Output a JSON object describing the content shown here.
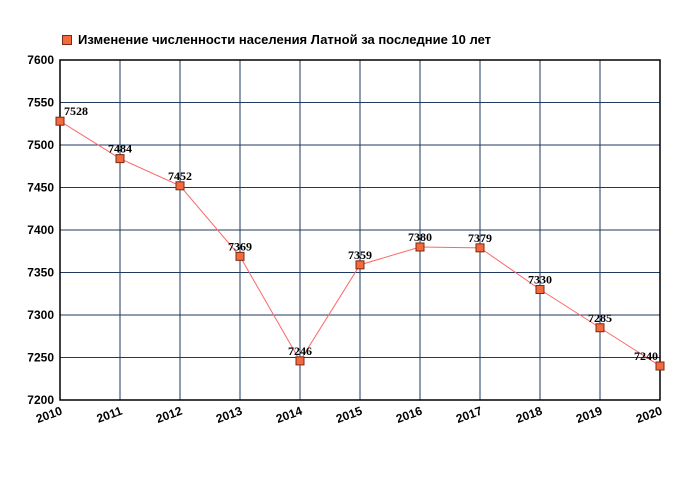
{
  "chart_data": {
    "type": "line",
    "title": "",
    "xlabel": "",
    "ylabel": "",
    "x": [
      "2010",
      "2011",
      "2012",
      "2013",
      "2014",
      "2015",
      "2016",
      "2017",
      "2018",
      "2019",
      "2020"
    ],
    "series": [
      {
        "name": "Изменение численности населения Латной за последние 10 лет",
        "values": [
          7528,
          7484,
          7452,
          7369,
          7246,
          7359,
          7380,
          7379,
          7330,
          7285,
          7240
        ]
      }
    ],
    "ylim": [
      7200,
      7600
    ],
    "yticks": [
      7200,
      7250,
      7300,
      7350,
      7400,
      7450,
      7500,
      7550,
      7600
    ],
    "grid": true,
    "legend_position": "top-left",
    "colors": {
      "line": "#ff6666",
      "marker": "#f26a3d",
      "marker_border": "#7a2a10",
      "grid": "#1f3a5f"
    }
  }
}
